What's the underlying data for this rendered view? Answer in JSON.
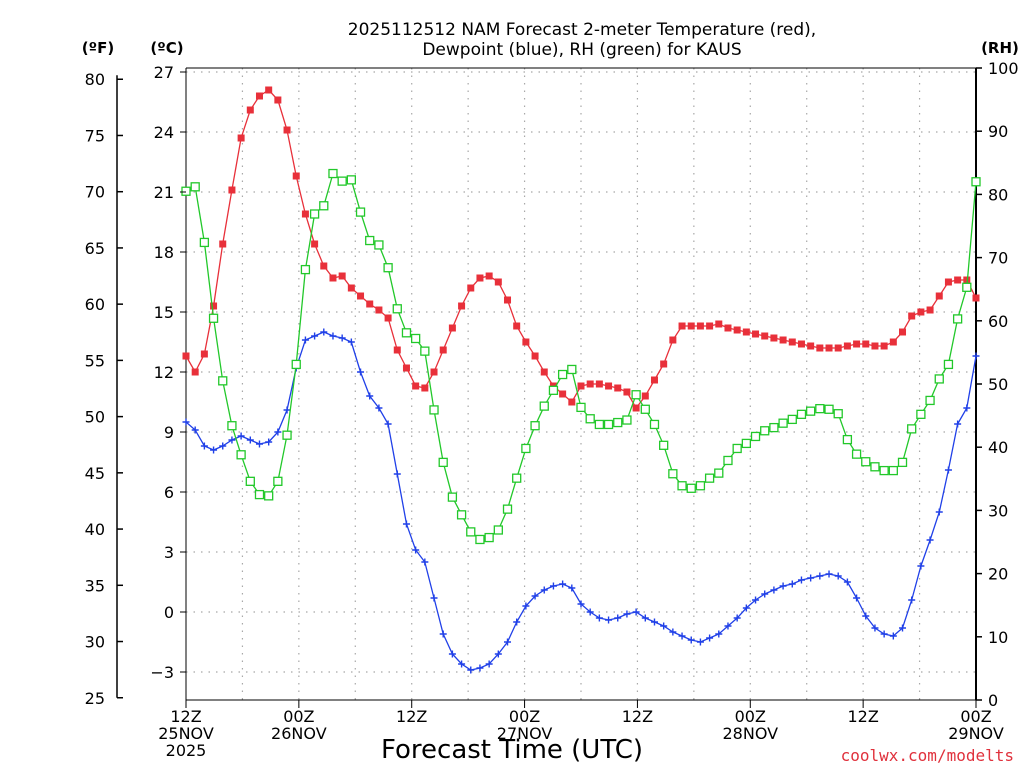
{
  "chart_data": {
    "type": "line",
    "title_line1": "2025112512 NAM Forecast 2-meter Temperature (red),",
    "title_line2": "Dewpoint (blue), RH (green) for KAUS",
    "xlabel": "Forecast Time (UTC)",
    "credit": "coolwx.com/modelts",
    "units": {
      "left_f": "(ºF)",
      "left_c": "(ºC)",
      "right_rh": "(RH)"
    },
    "x_ticks": [
      {
        "hour": 0,
        "lines": [
          "12Z",
          "25NOV",
          "2025"
        ]
      },
      {
        "hour": 12,
        "lines": [
          "00Z",
          "26NOV"
        ]
      },
      {
        "hour": 24,
        "lines": [
          "12Z"
        ]
      },
      {
        "hour": 36,
        "lines": [
          "00Z",
          "27NOV"
        ]
      },
      {
        "hour": 48,
        "lines": [
          "12Z"
        ]
      },
      {
        "hour": 60,
        "lines": [
          "00Z",
          "28NOV"
        ]
      },
      {
        "hour": 72,
        "lines": [
          "12Z"
        ]
      },
      {
        "hour": 84,
        "lines": [
          "00Z",
          "29NOV"
        ]
      }
    ],
    "xlim_hours": [
      0,
      84
    ],
    "xlim_labels": [
      "2025-11-25 12Z",
      "2025-11-29 00Z"
    ],
    "ylim_c": [
      -4.4,
      27.2
    ],
    "ylim_f": [
      24.8,
      81.0
    ],
    "ylim_rh": [
      0,
      100
    ],
    "y_ticks_c": [
      27,
      24,
      21,
      18,
      15,
      12,
      9,
      6,
      3,
      0,
      -3
    ],
    "y_tick_labels_c": [
      "27",
      "24",
      "21",
      "18",
      "15",
      "12",
      "9",
      "6",
      "3",
      "0",
      "−3"
    ],
    "y_ticks_f": [
      80,
      75,
      70,
      65,
      60,
      55,
      50,
      45,
      40,
      35,
      30,
      25
    ],
    "y_ticks_rh": [
      100,
      90,
      80,
      70,
      60,
      50,
      40,
      30,
      20,
      10,
      0
    ],
    "grid": true,
    "series": [
      {
        "name": "Temperature",
        "color": "#e8303a",
        "marker": "filled-square",
        "axis": "celsius",
        "values": [
          12.8,
          12.0,
          12.9,
          15.3,
          18.4,
          21.1,
          23.7,
          25.1,
          25.8,
          26.1,
          25.6,
          24.1,
          21.8,
          19.9,
          18.4,
          17.3,
          16.7,
          16.8,
          16.2,
          15.8,
          15.4,
          15.1,
          14.7,
          13.1,
          12.2,
          11.3,
          11.2,
          12.0,
          13.1,
          14.2,
          15.3,
          16.2,
          16.7,
          16.8,
          16.5,
          15.6,
          14.3,
          13.5,
          12.8,
          12.0,
          11.3,
          10.9,
          10.5,
          11.3,
          11.4,
          11.4,
          11.3,
          11.2,
          11.0,
          10.2,
          10.8,
          11.6,
          12.4,
          13.6,
          14.3,
          14.3,
          14.3,
          14.3,
          14.4,
          14.2,
          14.1,
          14.0,
          13.9,
          13.8,
          13.7,
          13.6,
          13.5,
          13.4,
          13.3,
          13.2,
          13.2,
          13.2,
          13.3,
          13.4,
          13.4,
          13.3,
          13.3,
          13.5,
          14.0,
          14.8,
          15.0,
          15.1,
          15.8,
          16.5,
          16.6,
          16.6,
          15.7
        ]
      },
      {
        "name": "Dewpoint",
        "color": "#2040e8",
        "marker": "plus",
        "axis": "celsius",
        "values": [
          9.5,
          9.1,
          8.3,
          8.1,
          8.3,
          8.6,
          8.8,
          8.6,
          8.4,
          8.5,
          9.0,
          10.1,
          12.2,
          13.6,
          13.8,
          14.0,
          13.8,
          13.7,
          13.5,
          12.0,
          10.8,
          10.2,
          9.4,
          6.9,
          4.4,
          3.1,
          2.5,
          0.7,
          -1.1,
          -2.1,
          -2.6,
          -2.9,
          -2.8,
          -2.6,
          -2.1,
          -1.5,
          -0.5,
          0.3,
          0.8,
          1.1,
          1.3,
          1.4,
          1.2,
          0.4,
          0.0,
          -0.3,
          -0.4,
          -0.3,
          -0.1,
          0.0,
          -0.3,
          -0.5,
          -0.7,
          -1.0,
          -1.2,
          -1.4,
          -1.5,
          -1.3,
          -1.1,
          -0.7,
          -0.3,
          0.2,
          0.6,
          0.9,
          1.1,
          1.3,
          1.4,
          1.6,
          1.7,
          1.8,
          1.9,
          1.8,
          1.5,
          0.7,
          -0.2,
          -0.8,
          -1.1,
          -1.2,
          -0.8,
          0.6,
          2.3,
          3.6,
          5.0,
          7.1,
          9.4,
          10.2,
          12.8
        ]
      },
      {
        "name": "RH",
        "color": "#22c82a",
        "marker": "open-square",
        "axis": "rh",
        "values": [
          80.5,
          81.2,
          72.4,
          60.4,
          50.5,
          43.4,
          38.8,
          34.6,
          32.5,
          32.3,
          34.6,
          41.9,
          53.1,
          68.1,
          76.9,
          78.2,
          83.3,
          82.1,
          82.3,
          77.2,
          72.7,
          72.0,
          68.4,
          61.9,
          58.1,
          57.2,
          55.2,
          45.9,
          37.6,
          32.1,
          29.3,
          26.6,
          25.4,
          25.7,
          26.9,
          30.2,
          35.1,
          39.8,
          43.4,
          46.5,
          49.0,
          51.5,
          52.3,
          46.3,
          44.5,
          43.6,
          43.6,
          43.9,
          44.3,
          48.3,
          46.0,
          43.6,
          40.3,
          35.8,
          33.9,
          33.5,
          33.9,
          35.1,
          35.9,
          37.9,
          39.8,
          40.6,
          41.7,
          42.6,
          43.1,
          43.8,
          44.4,
          45.2,
          45.7,
          46.1,
          46.0,
          45.3,
          41.2,
          38.9,
          37.7,
          36.9,
          36.3,
          36.3,
          37.6,
          42.9,
          45.2,
          47.4,
          50.8,
          53.1,
          60.3,
          65.3,
          82.0
        ]
      }
    ]
  }
}
